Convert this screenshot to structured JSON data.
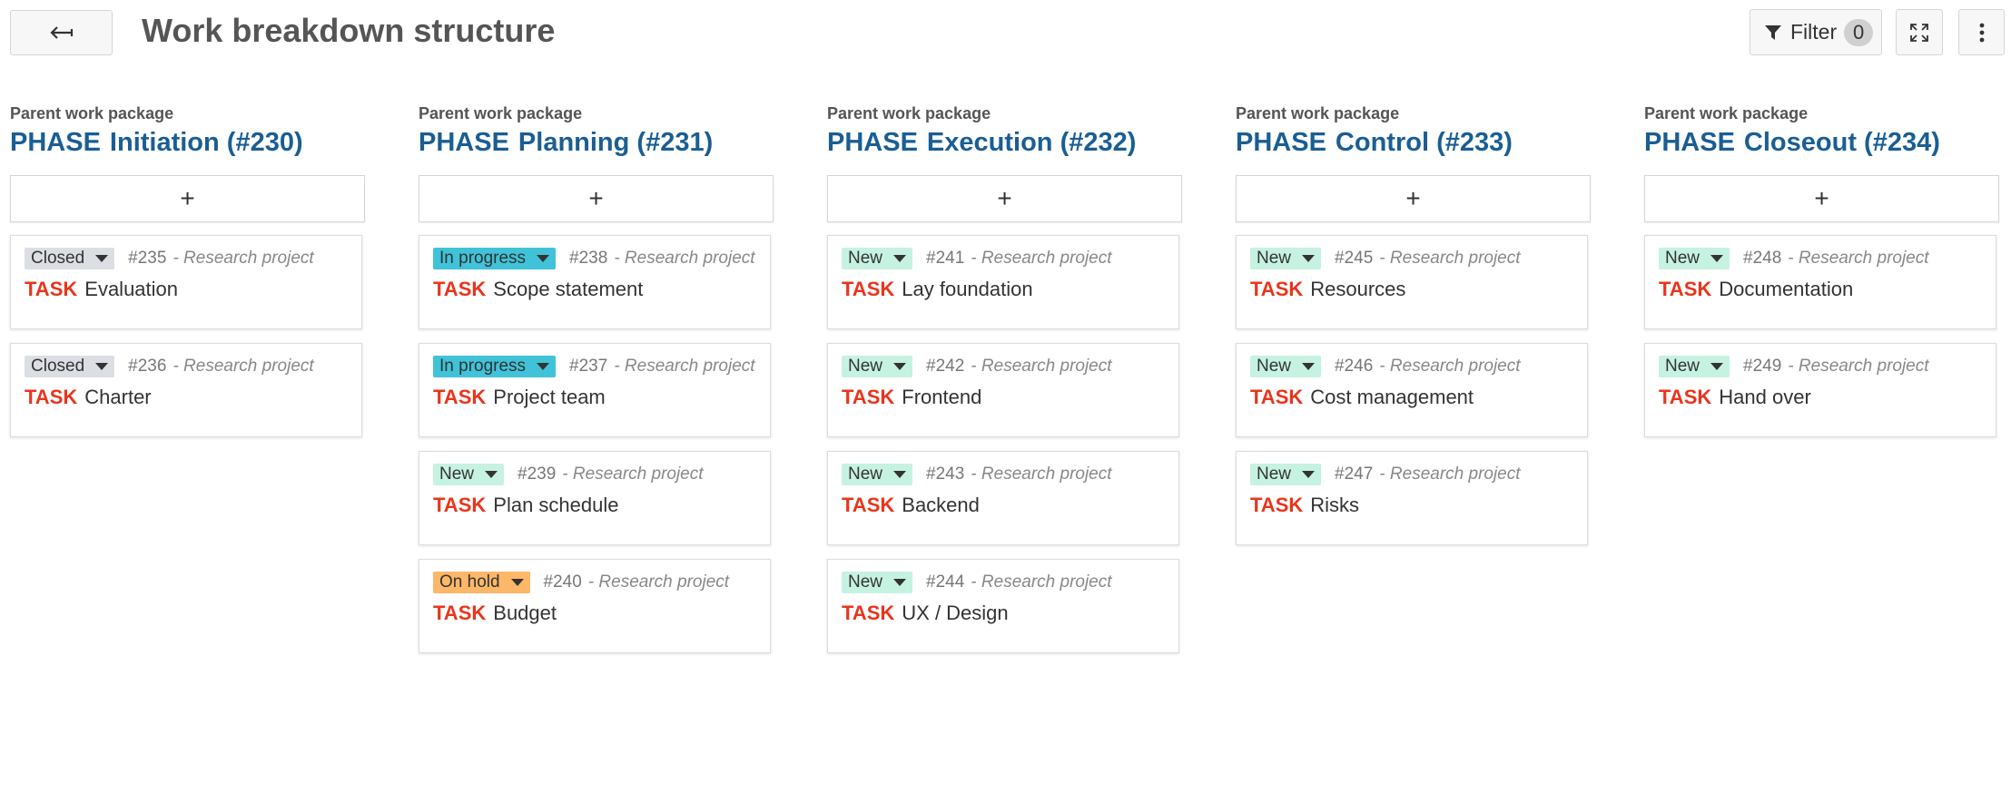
{
  "header": {
    "title": "Work breakdown structure",
    "filter_label": "Filter",
    "filter_count": "0"
  },
  "icons": {
    "back": "back-arrow-icon",
    "filter": "funnel-icon",
    "fullscreen": "expand-icon",
    "more": "vertical-dots-icon"
  },
  "colors": {
    "title_blue": "#1a5e93",
    "task_red": "#e8351c",
    "status_closed": "#dbdee2",
    "status_in_progress": "#40c3d8",
    "status_new": "#c6f2e2",
    "status_on_hold": "#fdb769"
  },
  "columns": [
    {
      "label": "Parent work package",
      "type": "PHASE",
      "title": "Initiation (#230)",
      "add_label": "+",
      "cards": [
        {
          "status": "Closed",
          "status_key": "closed",
          "id": "#235",
          "project": "- Research project",
          "type": "TASK",
          "subject": "Evaluation"
        },
        {
          "status": "Closed",
          "status_key": "closed",
          "id": "#236",
          "project": "- Research project",
          "type": "TASK",
          "subject": "Charter"
        }
      ]
    },
    {
      "label": "Parent work package",
      "type": "PHASE",
      "title": "Planning (#231)",
      "add_label": "+",
      "cards": [
        {
          "status": "In progress",
          "status_key": "progress",
          "id": "#238",
          "project": "- Research project",
          "type": "TASK",
          "subject": "Scope statement"
        },
        {
          "status": "In progress",
          "status_key": "progress",
          "id": "#237",
          "project": "- Research project",
          "type": "TASK",
          "subject": "Project team"
        },
        {
          "status": "New",
          "status_key": "new",
          "id": "#239",
          "project": "- Research project",
          "type": "TASK",
          "subject": "Plan schedule"
        },
        {
          "status": "On hold",
          "status_key": "hold",
          "id": "#240",
          "project": "- Research project",
          "type": "TASK",
          "subject": "Budget"
        }
      ]
    },
    {
      "label": "Parent work package",
      "type": "PHASE",
      "title": "Execution (#232)",
      "add_label": "+",
      "cards": [
        {
          "status": "New",
          "status_key": "new",
          "id": "#241",
          "project": "- Research project",
          "type": "TASK",
          "subject": "Lay foundation"
        },
        {
          "status": "New",
          "status_key": "new",
          "id": "#242",
          "project": "- Research project",
          "type": "TASK",
          "subject": "Frontend"
        },
        {
          "status": "New",
          "status_key": "new",
          "id": "#243",
          "project": "- Research project",
          "type": "TASK",
          "subject": "Backend"
        },
        {
          "status": "New",
          "status_key": "new",
          "id": "#244",
          "project": "- Research project",
          "type": "TASK",
          "subject": "UX / Design"
        }
      ]
    },
    {
      "label": "Parent work package",
      "type": "PHASE",
      "title": "Control (#233)",
      "add_label": "+",
      "cards": [
        {
          "status": "New",
          "status_key": "new",
          "id": "#245",
          "project": "- Research project",
          "type": "TASK",
          "subject": "Resources"
        },
        {
          "status": "New",
          "status_key": "new",
          "id": "#246",
          "project": "- Research project",
          "type": "TASK",
          "subject": "Cost management"
        },
        {
          "status": "New",
          "status_key": "new",
          "id": "#247",
          "project": "- Research project",
          "type": "TASK",
          "subject": "Risks"
        }
      ]
    },
    {
      "label": "Parent work package",
      "type": "PHASE",
      "title": "Closeout (#234)",
      "add_label": "+",
      "cards": [
        {
          "status": "New",
          "status_key": "new",
          "id": "#248",
          "project": "- Research project",
          "type": "TASK",
          "subject": "Documentation"
        },
        {
          "status": "New",
          "status_key": "new",
          "id": "#249",
          "project": "- Research project",
          "type": "TASK",
          "subject": "Hand over"
        }
      ]
    }
  ]
}
